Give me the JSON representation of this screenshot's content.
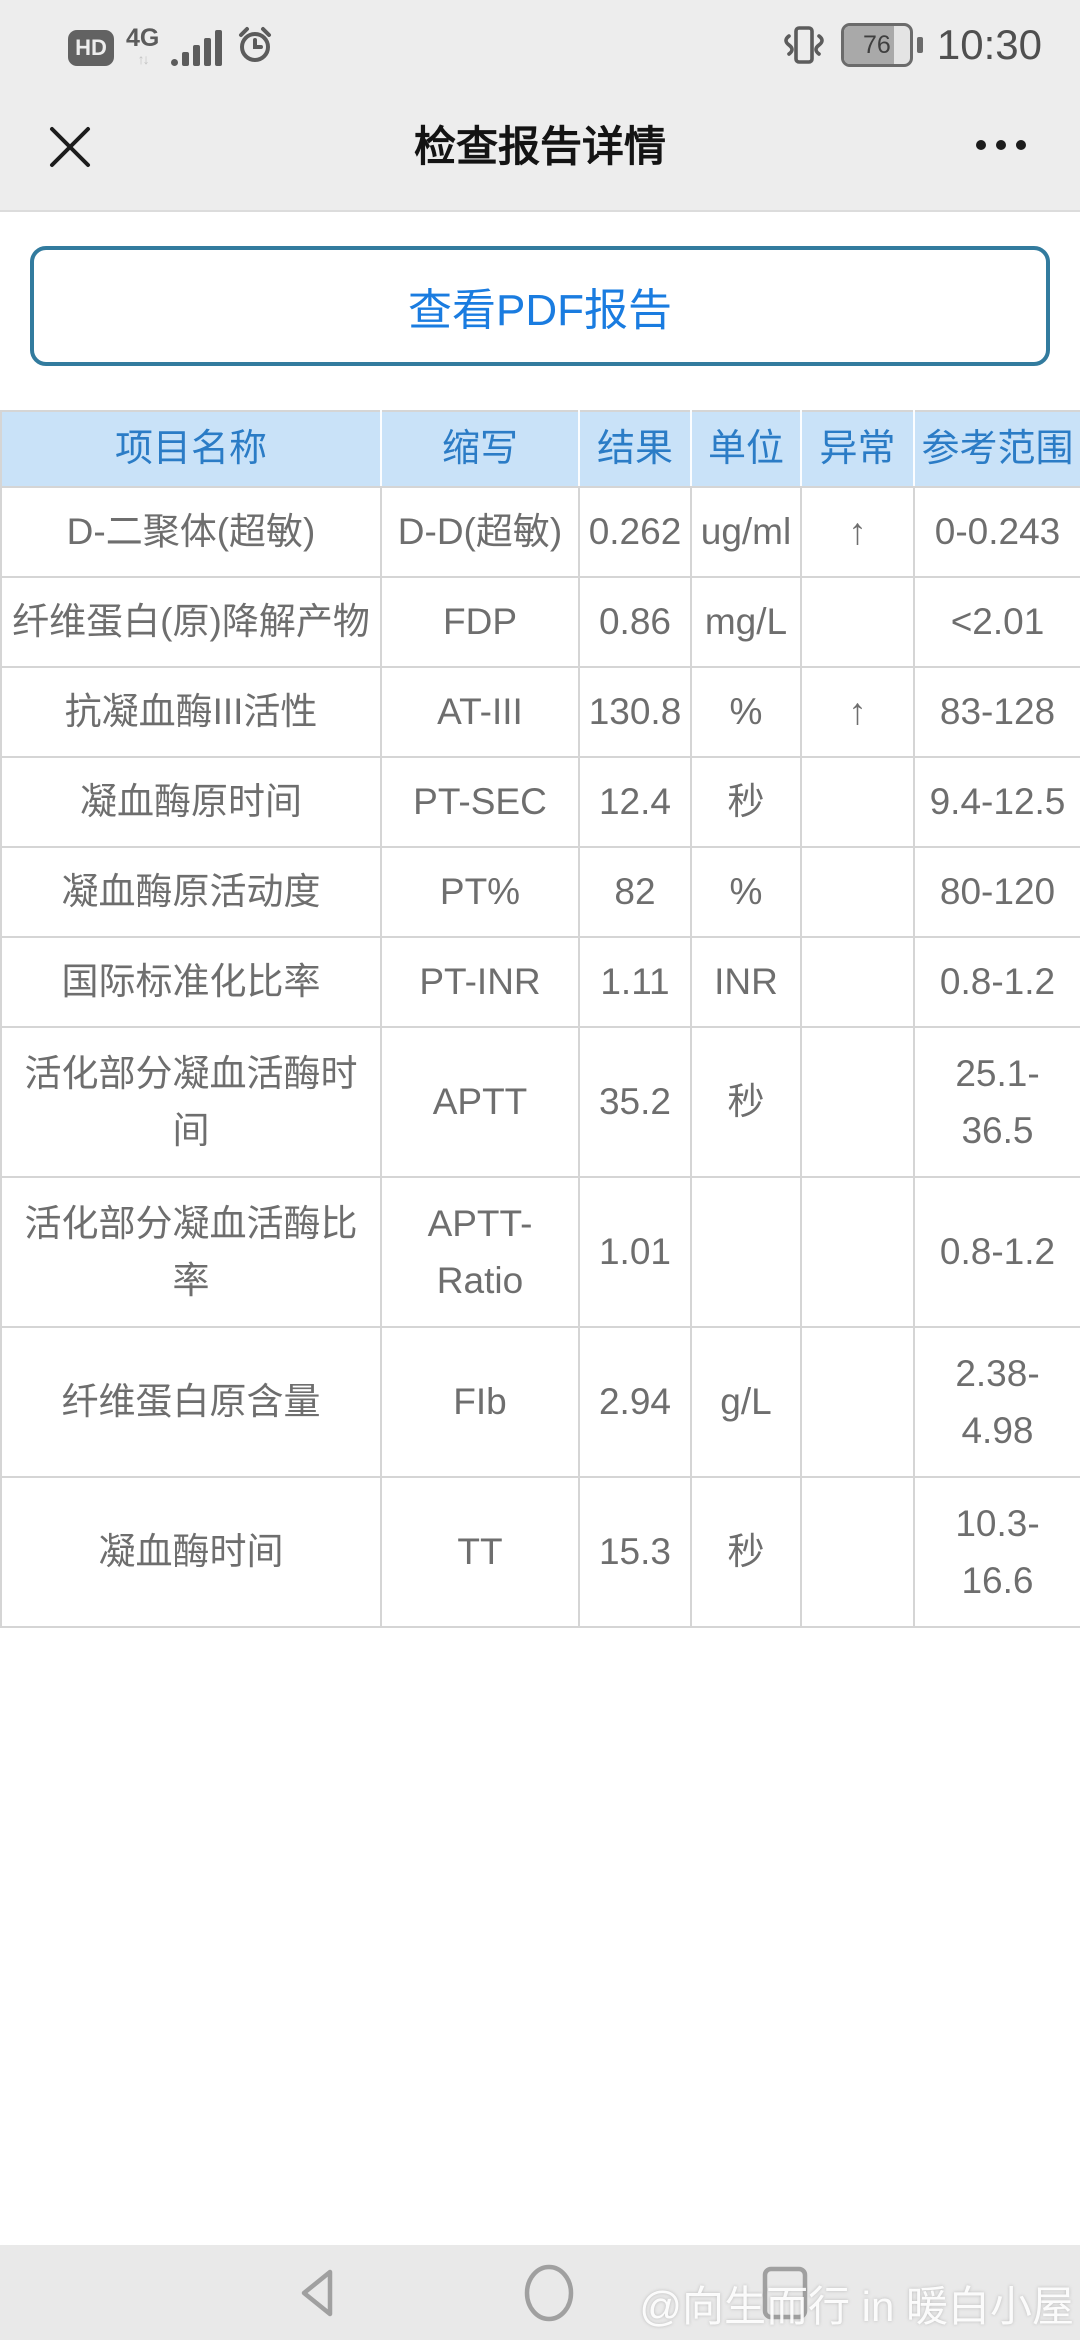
{
  "status_bar": {
    "hd_label": "HD",
    "network_label": "4G",
    "network_arrows": "↑↓",
    "battery_percent": "76",
    "time": "10:30",
    "icons": [
      "hd-icon",
      "network-4g-icon",
      "signal-bars-icon",
      "alarm-clock-icon",
      "vibrate-icon",
      "battery-icon"
    ]
  },
  "header": {
    "title": "检查报告详情",
    "icons": [
      "close-icon",
      "more-options-icon"
    ]
  },
  "pdf_button": {
    "label": "查看PDF报告"
  },
  "report_table": {
    "columns": [
      "项目名称",
      "缩写",
      "结果",
      "单位",
      "异常",
      "参考范围"
    ],
    "rows": [
      {
        "name": "D-二聚体(超敏)",
        "abbr": "D-D(超敏)",
        "result": "0.262",
        "unit": "ug/ml",
        "abnormal": "↑",
        "range": "0-0.243"
      },
      {
        "name": "纤维蛋白(原)降解产物",
        "abbr": "FDP",
        "result": "0.86",
        "unit": "mg/L",
        "abnormal": "",
        "range": "<2.01"
      },
      {
        "name": "抗凝血酶III活性",
        "abbr": "AT-III",
        "result": "130.8",
        "unit": "%",
        "abnormal": "↑",
        "range": "83-128"
      },
      {
        "name": "凝血酶原时间",
        "abbr": "PT-SEC",
        "result": "12.4",
        "unit": "秒",
        "abnormal": "",
        "range": "9.4-12.5"
      },
      {
        "name": "凝血酶原活动度",
        "abbr": "PT%",
        "result": "82",
        "unit": "%",
        "abnormal": "",
        "range": "80-120"
      },
      {
        "name": "国际标准化比率",
        "abbr": "PT-INR",
        "result": "1.11",
        "unit": "INR",
        "abnormal": "",
        "range": "0.8-1.2"
      },
      {
        "name": "活化部分凝血活酶时\n间",
        "abbr": "APTT",
        "result": "35.2",
        "unit": "秒",
        "abnormal": "",
        "range": "25.1-\n36.5"
      },
      {
        "name": "活化部分凝血活酶比\n率",
        "abbr": "APTT-\nRatio",
        "result": "1.01",
        "unit": "",
        "abnormal": "",
        "range": "0.8-1.2"
      },
      {
        "name": "纤维蛋白原含量",
        "abbr": "FIb",
        "result": "2.94",
        "unit": "g/L",
        "abnormal": "",
        "range": "2.38-\n4.98"
      },
      {
        "name": "凝血酶时间",
        "abbr": "TT",
        "result": "15.3",
        "unit": "秒",
        "abnormal": "",
        "range": "10.3-\n16.6"
      }
    ]
  },
  "nav_bar": {
    "icons": [
      "nav-back-icon",
      "nav-home-icon",
      "nav-recents-icon"
    ]
  },
  "watermark": {
    "text": "@向生而行 in 暖白小屋"
  },
  "colors": {
    "chrome_bg": "#ededed",
    "table_header_bg": "#c9e2f8",
    "table_header_text": "#2b7cc6",
    "table_border": "#d5d5d5",
    "cell_text": "#6e6e6e",
    "button_border": "#327b9e",
    "button_text": "#1a7ce0",
    "nav_bg": "#e9e9e9",
    "nav_icon": "#a0a0a0"
  }
}
